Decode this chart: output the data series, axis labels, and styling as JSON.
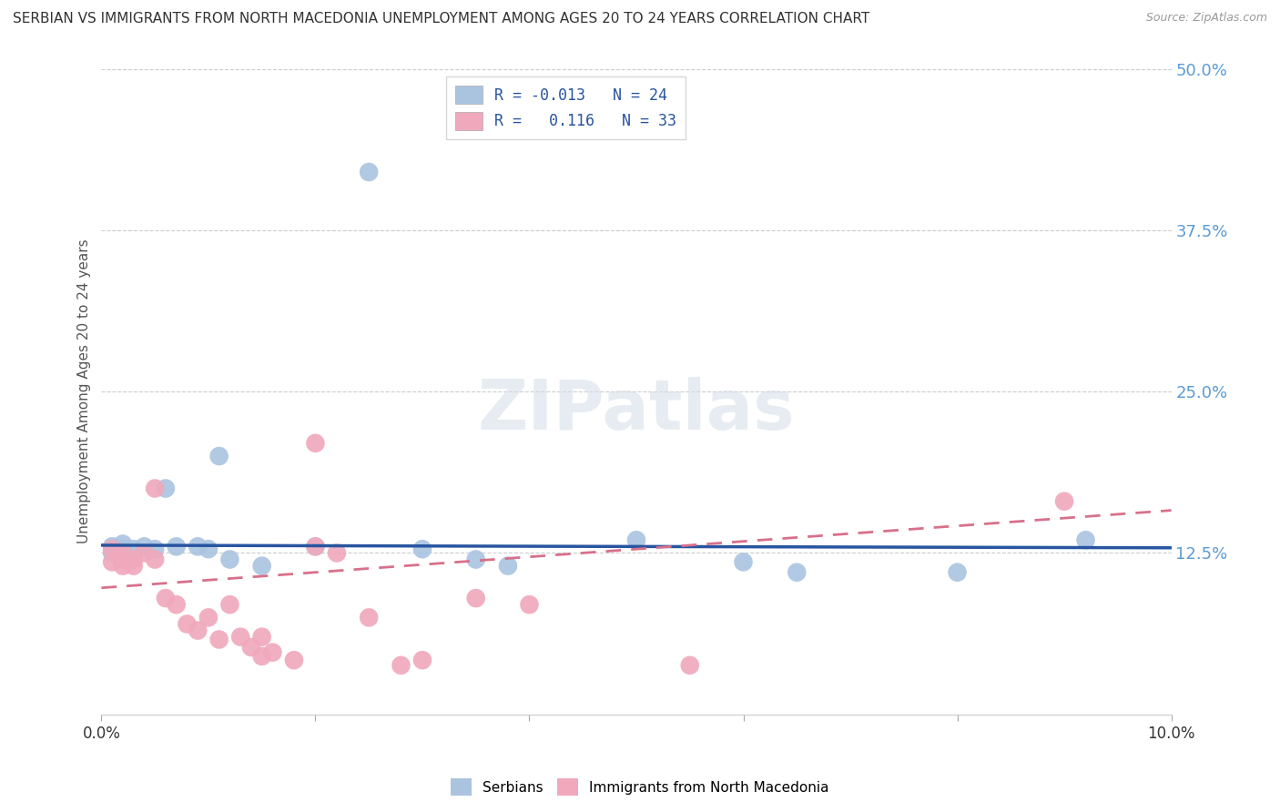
{
  "title": "SERBIAN VS IMMIGRANTS FROM NORTH MACEDONIA UNEMPLOYMENT AMONG AGES 20 TO 24 YEARS CORRELATION CHART",
  "source": "Source: ZipAtlas.com",
  "ylabel": "Unemployment Among Ages 20 to 24 years",
  "watermark": "ZIPatlas",
  "xlim": [
    0.0,
    0.1
  ],
  "ylim": [
    0.0,
    0.5
  ],
  "yticks": [
    0.0,
    0.125,
    0.25,
    0.375,
    0.5
  ],
  "ytick_labels": [
    "",
    "12.5%",
    "25.0%",
    "37.5%",
    "50.0%"
  ],
  "xticks": [
    0.0,
    0.02,
    0.04,
    0.06,
    0.08,
    0.1
  ],
  "xtick_labels": [
    "0.0%",
    "",
    "",
    "",
    "",
    "10.0%"
  ],
  "blue_R": "-0.013",
  "blue_N": "24",
  "pink_R": "0.116",
  "pink_N": "33",
  "blue_scatter_x": [
    0.001,
    0.001,
    0.002,
    0.002,
    0.003,
    0.004,
    0.005,
    0.006,
    0.007,
    0.009,
    0.01,
    0.011,
    0.012,
    0.015,
    0.02,
    0.025,
    0.03,
    0.035,
    0.038,
    0.05,
    0.06,
    0.065,
    0.08,
    0.092
  ],
  "blue_scatter_y": [
    0.13,
    0.125,
    0.128,
    0.132,
    0.128,
    0.13,
    0.128,
    0.175,
    0.13,
    0.13,
    0.128,
    0.2,
    0.12,
    0.115,
    0.13,
    0.42,
    0.128,
    0.12,
    0.115,
    0.135,
    0.118,
    0.11,
    0.11,
    0.135
  ],
  "pink_scatter_x": [
    0.001,
    0.001,
    0.002,
    0.002,
    0.002,
    0.003,
    0.003,
    0.004,
    0.005,
    0.005,
    0.006,
    0.007,
    0.008,
    0.009,
    0.01,
    0.011,
    0.012,
    0.013,
    0.014,
    0.015,
    0.015,
    0.016,
    0.018,
    0.02,
    0.02,
    0.022,
    0.025,
    0.028,
    0.03,
    0.035,
    0.04,
    0.055,
    0.09
  ],
  "pink_scatter_y": [
    0.128,
    0.118,
    0.12,
    0.115,
    0.125,
    0.115,
    0.12,
    0.125,
    0.175,
    0.12,
    0.09,
    0.085,
    0.07,
    0.065,
    0.075,
    0.058,
    0.085,
    0.06,
    0.052,
    0.045,
    0.06,
    0.048,
    0.042,
    0.13,
    0.21,
    0.125,
    0.075,
    0.038,
    0.042,
    0.09,
    0.085,
    0.038,
    0.165
  ],
  "blue_line_y0": 0.131,
  "blue_line_y1": 0.129,
  "pink_line_y0": 0.098,
  "pink_line_y1": 0.158,
  "blue_line_color": "#2855a0",
  "pink_line_color": "#d8708a",
  "blue_scatter_color": "#aac4e0",
  "pink_scatter_color": "#f0a8bc",
  "grid_color": "#cccccc",
  "background_color": "#ffffff",
  "title_color": "#333333",
  "axis_label_color": "#555555",
  "tick_color_right": "#5b9bd5",
  "legend_fontsize": 12,
  "title_fontsize": 11
}
